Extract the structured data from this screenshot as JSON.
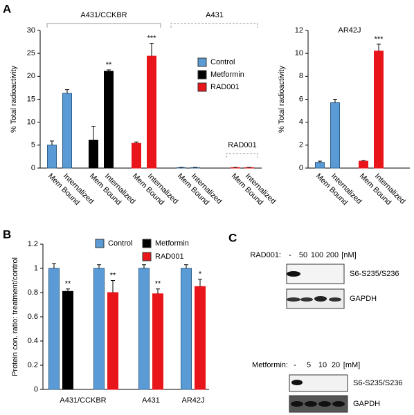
{
  "panels": [
    "A",
    "B",
    "C"
  ],
  "chart_data": [
    {
      "type": "bar",
      "ylabel": "% Total  radioactivity",
      "annotations": [
        "A431/CCKBR",
        "A431",
        "RAD001"
      ],
      "categories": [
        "Mem Bound",
        "Internalized",
        "Mem Bound",
        "Internalized",
        "Mem Bound",
        "Internalized",
        "Mem Bound",
        "Internalized",
        "Mem Bound",
        "Internalized"
      ],
      "series": [
        {
          "name": "Control",
          "color": "#5b9bd5",
          "values": [
            5.0,
            16.3,
            null,
            null,
            null,
            null,
            0.1,
            0.1,
            null,
            null
          ],
          "errors": [
            0.9,
            0.8,
            null,
            null,
            null,
            null,
            0.05,
            0.05,
            null,
            null
          ]
        },
        {
          "name": "Metformin",
          "color": "#000000",
          "values": [
            null,
            null,
            6.1,
            21.1,
            null,
            null,
            null,
            null,
            null,
            null
          ],
          "errors": [
            null,
            null,
            3.0,
            0.3,
            null,
            null,
            null,
            null,
            null,
            null
          ],
          "significance": [
            null,
            null,
            null,
            "**",
            null,
            null,
            null,
            null,
            null,
            null
          ]
        },
        {
          "name": "RAD001",
          "color": "#e8161b",
          "values": [
            null,
            null,
            null,
            null,
            5.4,
            24.4,
            null,
            null,
            0.1,
            0.1
          ],
          "errors": [
            null,
            null,
            null,
            null,
            0.3,
            2.8,
            null,
            null,
            0.05,
            0.05
          ],
          "significance": [
            null,
            null,
            null,
            null,
            null,
            "***",
            null,
            null,
            null,
            null
          ]
        }
      ],
      "ylim": [
        0,
        30
      ],
      "yticks": [
        0,
        5,
        10,
        15,
        20,
        25,
        30
      ],
      "legend": true
    },
    {
      "type": "bar",
      "title": "AR42J",
      "ylabel": "% Total  radioactivity",
      "categories": [
        "Mem Bound",
        "Internalized",
        "Mem Bound",
        "Internalized"
      ],
      "series": [
        {
          "name": "Control",
          "color": "#5b9bd5",
          "values": [
            0.5,
            5.7,
            null,
            null
          ],
          "errors": [
            0.1,
            0.3,
            null,
            null
          ]
        },
        {
          "name": "RAD001",
          "color": "#e8161b",
          "values": [
            null,
            null,
            0.6,
            10.2
          ],
          "errors": [
            null,
            null,
            0.05,
            0.6
          ],
          "significance": [
            null,
            null,
            null,
            "***"
          ]
        }
      ],
      "ylim": [
        0,
        12
      ],
      "yticks": [
        0,
        2,
        4,
        6,
        8,
        10,
        12
      ],
      "legend": false
    },
    {
      "type": "bar",
      "ylabel": "Protein con. ratio: treatment/control",
      "categories": [
        "A431/CCKBR",
        null,
        "A431",
        "AR42J"
      ],
      "series": [
        {
          "name": "Control",
          "color": "#5b9bd5",
          "values": [
            1.0,
            1.0,
            1.0,
            1.0
          ],
          "errors": [
            0.04,
            0.03,
            0.03,
            0.03
          ]
        },
        {
          "name": "Metformin",
          "color": "#000000",
          "values": [
            0.81,
            null,
            null,
            null
          ],
          "errors": [
            0.02,
            null,
            null,
            null
          ],
          "significance": [
            "**",
            null,
            null,
            null
          ]
        },
        {
          "name": "RAD001",
          "color": "#e8161b",
          "values": [
            null,
            0.8,
            0.79,
            0.85
          ],
          "errors": [
            null,
            0.1,
            0.04,
            0.06
          ],
          "significance": [
            null,
            "**",
            "**",
            "*"
          ]
        }
      ],
      "ylim": [
        0,
        1.2
      ],
      "yticks": [
        0,
        0.2,
        0.4,
        0.6,
        0.8,
        1,
        1.2
      ],
      "legend": true
    }
  ],
  "blot": {
    "rad001": {
      "label": "RAD001:",
      "lanes": [
        "-",
        "50",
        "100",
        "200"
      ],
      "unit": "[nM]",
      "rows": [
        "S6-S235/S236",
        "GAPDH"
      ]
    },
    "metformin": {
      "label": "Metformin:",
      "lanes": [
        "-",
        "5",
        "10",
        "20"
      ],
      "unit": "[mM]",
      "rows": [
        "S6-S235/S236",
        "GAPDH"
      ]
    }
  }
}
